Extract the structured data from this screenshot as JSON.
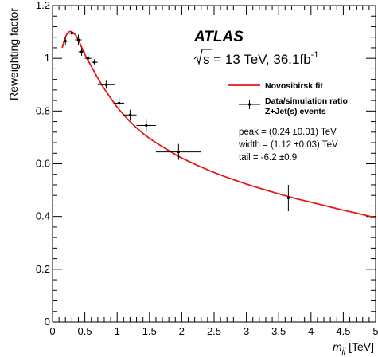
{
  "chart_data": {
    "type": "scatter",
    "xlabel_main": "m",
    "xlabel_sub": "jj",
    "xlabel_unit": " [TeV]",
    "ylabel": "Reweighting factor",
    "xlim": [
      0,
      5
    ],
    "ylim": [
      0,
      1.2
    ],
    "x_ticks": [
      0,
      0.5,
      1,
      1.5,
      2,
      2.5,
      3,
      3.5,
      4,
      4.5,
      5
    ],
    "x_tick_labels": [
      "0",
      "0.5",
      "1",
      "1.5",
      "2",
      "2.5",
      "3",
      "3.5",
      "4",
      "4.5",
      "5"
    ],
    "y_ticks": [
      0,
      0.2,
      0.4,
      0.6,
      0.8,
      1,
      1.2
    ],
    "y_tick_labels": [
      "0",
      "0.2",
      "0.4",
      "0.6",
      "0.8",
      "1",
      "1.2"
    ],
    "grid": false,
    "annotations": {
      "atlas": "ATLAS",
      "sqrt_s": "s",
      "energy": " = 13 TeV, 36.1fb",
      "energy_exp": "-1"
    },
    "legend": {
      "placement": "right",
      "fit_label": "Novosibirsk fit",
      "data_label_line1": "Data/simulation ratio",
      "data_label_line2": "Z+Jet(s) events"
    },
    "params": {
      "peak": "peak = (0.24 ±0.01) TeV",
      "width": "width = (1.12 ±0.03) TeV",
      "tail": "tail = -6.2 ±0.9"
    },
    "fit": {
      "name": "Novosibirsk fit",
      "color": "#e41a1c",
      "x": [
        0.15,
        0.2,
        0.25,
        0.3,
        0.35,
        0.4,
        0.5,
        0.6,
        0.7,
        0.8,
        1.0,
        1.2,
        1.4,
        1.6,
        1.8,
        2.0,
        2.25,
        2.5,
        2.75,
        3.0,
        3.25,
        3.5,
        3.75,
        4.0,
        4.25,
        4.5,
        4.75,
        5.0
      ],
      "y": [
        1.04,
        1.08,
        1.1,
        1.1,
        1.09,
        1.07,
        1.015,
        0.97,
        0.925,
        0.885,
        0.815,
        0.76,
        0.715,
        0.68,
        0.65,
        0.622,
        0.593,
        0.567,
        0.544,
        0.523,
        0.504,
        0.486,
        0.469,
        0.454,
        0.439,
        0.424,
        0.41,
        0.395
      ]
    },
    "data": {
      "name": "Data/simulation ratio",
      "color": "#000000",
      "points": [
        {
          "x": 0.2,
          "y": 1.065,
          "xerr": 0.05,
          "yerr": 0.012
        },
        {
          "x": 0.3,
          "y": 1.095,
          "xerr": 0.05,
          "yerr": 0.012
        },
        {
          "x": 0.4,
          "y": 1.07,
          "xerr": 0.05,
          "yerr": 0.02
        },
        {
          "x": 0.45,
          "y": 1.025,
          "xerr": 0.05,
          "yerr": 0.015
        },
        {
          "x": 0.55,
          "y": 1.0,
          "xerr": 0.05,
          "yerr": 0.012
        },
        {
          "x": 0.65,
          "y": 0.985,
          "xerr": 0.05,
          "yerr": 0.012
        },
        {
          "x": 0.83,
          "y": 0.9,
          "xerr": 0.13,
          "yerr": 0.015
        },
        {
          "x": 1.03,
          "y": 0.83,
          "xerr": 0.08,
          "yerr": 0.02
        },
        {
          "x": 1.2,
          "y": 0.785,
          "xerr": 0.1,
          "yerr": 0.02
        },
        {
          "x": 1.45,
          "y": 0.745,
          "xerr": 0.15,
          "yerr": 0.025
        },
        {
          "x": 1.95,
          "y": 0.645,
          "xerr": 0.35,
          "yerr": 0.03
        },
        {
          "x": 3.65,
          "y": 0.47,
          "xerr": 1.35,
          "yerr": 0.05
        }
      ]
    }
  }
}
